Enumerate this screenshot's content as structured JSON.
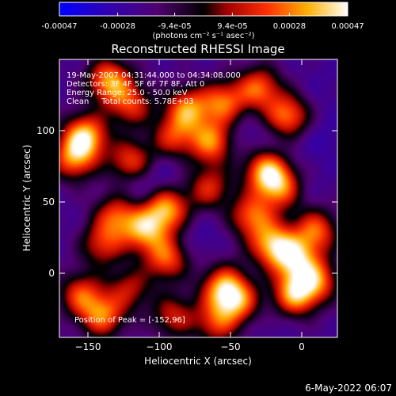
{
  "colorbar": {
    "tick_labels": [
      "-0.00047",
      "-0.00028",
      "-9.4e-05",
      "9.4e-05",
      "0.00028",
      "0.00047"
    ],
    "tick_values": [
      -0.00047,
      -0.00028,
      -9.4e-05,
      9.4e-05,
      0.00028,
      0.00047
    ],
    "range": [
      -0.00047,
      0.00047
    ],
    "unit_label": "(photons cm⁻² s⁻¹ asec⁻²)",
    "colormap": [
      "#0000ff",
      "#4b0082",
      "#000000",
      "#8b0000",
      "#ff2200",
      "#ff8800",
      "#ffee44",
      "#ffffff"
    ]
  },
  "chart_data": {
    "type": "heatmap",
    "title": "Reconstructed RHESSI Image",
    "xlabel": "Heliocentric X (arcsec)",
    "ylabel": "Heliocentric Y (arcsec)",
    "xlim": [
      -170,
      25
    ],
    "ylim": [
      -45,
      150
    ],
    "x_ticks": [
      -150,
      -100,
      -50,
      0
    ],
    "y_ticks": [
      0,
      50,
      100
    ],
    "x_tick_labels": [
      "−150",
      "−100",
      "−50",
      "0"
    ],
    "y_tick_labels": [
      "0",
      "50",
      "100"
    ],
    "annotations": [
      "19-May-2007 04:31:44.000 to 04:34:08.000",
      "Detectors: 3F 4F 5F 6F 7F 8F, Att 0",
      "Energy Range: 25.0 - 50.0 keV",
      "Clean     Total counts: 5.78E+03"
    ],
    "peak_label": "Position of Peak = [-152,96]",
    "peak_position": [
      -152,
      96
    ],
    "blobs": [
      {
        "x": -152,
        "y": 96,
        "value": 0.00047
      },
      {
        "x": -135,
        "y": 135,
        "value": 0.0004
      },
      {
        "x": -160,
        "y": 80,
        "value": 0.0003
      },
      {
        "x": -120,
        "y": 78,
        "value": 0.00028
      },
      {
        "x": -95,
        "y": 45,
        "value": 0.0004
      },
      {
        "x": -110,
        "y": 30,
        "value": 0.00035
      },
      {
        "x": -95,
        "y": 10,
        "value": 0.0003
      },
      {
        "x": -80,
        "y": 115,
        "value": 0.00035
      },
      {
        "x": -63,
        "y": 92,
        "value": 0.00035
      },
      {
        "x": -55,
        "y": 120,
        "value": 0.0003
      },
      {
        "x": -25,
        "y": 72,
        "value": 0.0004
      },
      {
        "x": -15,
        "y": 60,
        "value": 0.00028
      },
      {
        "x": -10,
        "y": 110,
        "value": 0.00035
      },
      {
        "x": -30,
        "y": 130,
        "value": 0.0003
      },
      {
        "x": -35,
        "y": 40,
        "value": 0.0003
      },
      {
        "x": -20,
        "y": 20,
        "value": 0.0004
      },
      {
        "x": -5,
        "y": 10,
        "value": 0.00035
      },
      {
        "x": 10,
        "y": 30,
        "value": 0.0003
      },
      {
        "x": -55,
        "y": -10,
        "value": 0.00035
      },
      {
        "x": -45,
        "y": -20,
        "value": 0.00028
      },
      {
        "x": -5,
        "y": -15,
        "value": 0.0004
      },
      {
        "x": 10,
        "y": -5,
        "value": 0.0003
      },
      {
        "x": -140,
        "y": -30,
        "value": 0.0003
      },
      {
        "x": -155,
        "y": -15,
        "value": 0.00025
      },
      {
        "x": -130,
        "y": 40,
        "value": 0.00025
      },
      {
        "x": -140,
        "y": 20,
        "value": 0.0002
      },
      {
        "x": -65,
        "y": 60,
        "value": 0.0002
      },
      {
        "x": -90,
        "y": 95,
        "value": 0.0002
      },
      {
        "x": -120,
        "y": 118,
        "value": 0.00022
      },
      {
        "x": -90,
        "y": -30,
        "value": 0.00018
      },
      {
        "x": -60,
        "y": -35,
        "value": 0.0002
      },
      {
        "x": -120,
        "y": -10,
        "value": 0.00015
      },
      {
        "x": -115,
        "y": 62,
        "value": -0.00035
      },
      {
        "x": -95,
        "y": 70,
        "value": -0.0003
      },
      {
        "x": -40,
        "y": 95,
        "value": -0.0003
      },
      {
        "x": -15,
        "y": 90,
        "value": -0.00028
      },
      {
        "x": 15,
        "y": 95,
        "value": -0.0003
      },
      {
        "x": 5,
        "y": 60,
        "value": -0.00025
      },
      {
        "x": 15,
        "y": 130,
        "value": -0.00025
      },
      {
        "x": -110,
        "y": 0,
        "value": -0.00025
      },
      {
        "x": -70,
        "y": 25,
        "value": -0.00028
      },
      {
        "x": -20,
        "y": -35,
        "value": -0.00025
      },
      {
        "x": -140,
        "y": 55,
        "value": -0.0002
      },
      {
        "x": -160,
        "y": 40,
        "value": -0.00022
      },
      {
        "x": -70,
        "y": -15,
        "value": -0.0002
      },
      {
        "x": -130,
        "y": -25,
        "value": -0.00018
      },
      {
        "x": -45,
        "y": 10,
        "value": -0.00018
      },
      {
        "x": -100,
        "y": 140,
        "value": -0.0002
      },
      {
        "x": 15,
        "y": 5,
        "value": -0.0002
      }
    ]
  },
  "footer": {
    "date": "6-May-2022 06:07"
  }
}
